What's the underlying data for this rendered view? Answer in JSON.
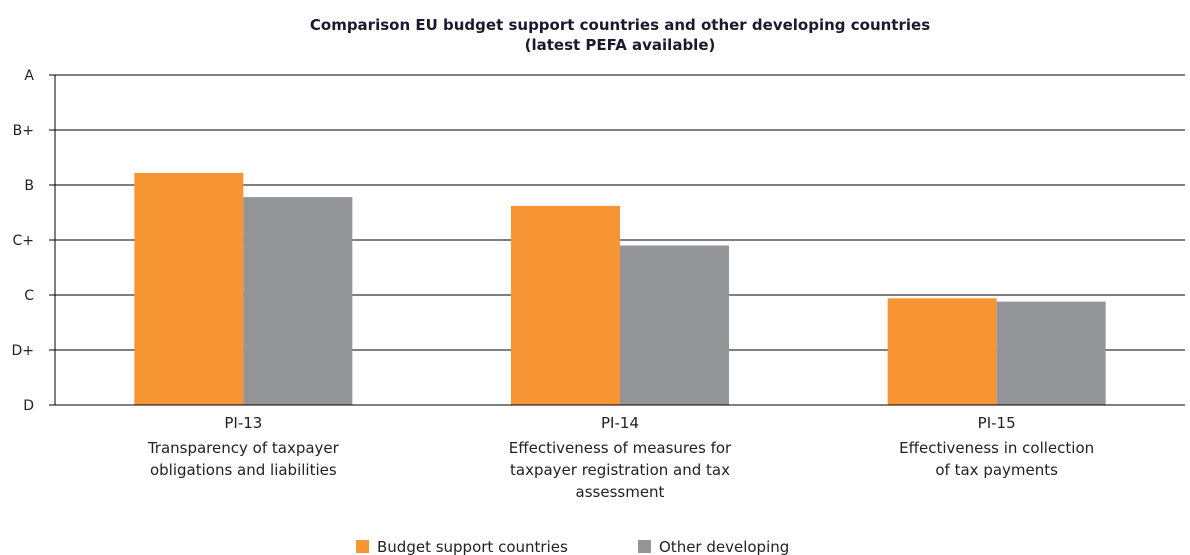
{
  "chart_data": {
    "type": "bar",
    "title_lines": [
      "Comparison EU budget support countries and other developing countries",
      "(latest PEFA available)"
    ],
    "y_ticks": [
      "D",
      "D+",
      "C",
      "C+",
      "B",
      "B+",
      "A"
    ],
    "ylim": [
      0,
      6
    ],
    "categories": [
      {
        "code": "PI-13",
        "lines": [
          "Transparency of taxpayer",
          "obligations and liabilities"
        ]
      },
      {
        "code": "PI-14",
        "lines": [
          "Effectiveness of measures for",
          "taxpayer registration and tax",
          "assessment"
        ]
      },
      {
        "code": "PI-15",
        "lines": [
          "Effectiveness in collection",
          "of tax payments"
        ]
      }
    ],
    "series": [
      {
        "name": "Budget support countries",
        "color": "#f79433",
        "values": [
          4.22,
          3.62,
          1.94
        ]
      },
      {
        "name": "Other developing",
        "color": "#939598",
        "values": [
          3.78,
          2.9,
          1.88
        ]
      }
    ],
    "grid": true,
    "legend_position": "bottom-center"
  }
}
